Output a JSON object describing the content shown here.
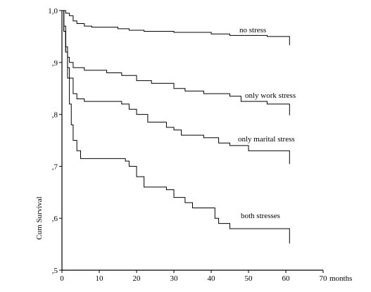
{
  "chart_data": {
    "type": "line",
    "xlabel": "months",
    "ylabel": "Cum Survival",
    "xlim": [
      0,
      70
    ],
    "ylim": [
      0.5,
      1.0
    ],
    "x_ticks": [
      0,
      10,
      20,
      30,
      40,
      50,
      60,
      70
    ],
    "x_tick_labels": [
      "0",
      "10",
      "20",
      "30",
      "40",
      "50",
      "60",
      "70"
    ],
    "y_ticks": [
      0.5,
      0.6,
      0.7,
      0.8,
      0.9,
      1.0
    ],
    "y_tick_labels": [
      ",5",
      ",6",
      ",7",
      ",8",
      ",9",
      "1,0"
    ],
    "series": [
      {
        "name": "no stress",
        "points": [
          [
            0,
            1.0
          ],
          [
            1,
            0.995
          ],
          [
            2,
            0.99
          ],
          [
            3,
            0.98
          ],
          [
            4,
            0.975
          ],
          [
            6,
            0.97
          ],
          [
            8,
            0.968
          ],
          [
            15,
            0.965
          ],
          [
            18,
            0.962
          ],
          [
            22,
            0.96
          ],
          [
            30,
            0.958
          ],
          [
            40,
            0.955
          ],
          [
            45,
            0.952
          ],
          [
            55,
            0.95
          ],
          [
            61,
            0.947
          ]
        ]
      },
      {
        "name": "only work stress",
        "points": [
          [
            0,
            1.0
          ],
          [
            0.5,
            0.97
          ],
          [
            1,
            0.93
          ],
          [
            1.5,
            0.91
          ],
          [
            2,
            0.9
          ],
          [
            3,
            0.89
          ],
          [
            6,
            0.885
          ],
          [
            12,
            0.88
          ],
          [
            16,
            0.875
          ],
          [
            20,
            0.865
          ],
          [
            24,
            0.86
          ],
          [
            30,
            0.85
          ],
          [
            33,
            0.845
          ],
          [
            38,
            0.84
          ],
          [
            45,
            0.835
          ],
          [
            48,
            0.825
          ],
          [
            55,
            0.82
          ],
          [
            61,
            0.812
          ]
        ]
      },
      {
        "name": "only marital stress",
        "points": [
          [
            0,
            1.0
          ],
          [
            0.5,
            0.96
          ],
          [
            1,
            0.92
          ],
          [
            1.5,
            0.89
          ],
          [
            2,
            0.87
          ],
          [
            3,
            0.84
          ],
          [
            4,
            0.83
          ],
          [
            6,
            0.825
          ],
          [
            16,
            0.82
          ],
          [
            18,
            0.81
          ],
          [
            20,
            0.8
          ],
          [
            23,
            0.785
          ],
          [
            28,
            0.775
          ],
          [
            30,
            0.77
          ],
          [
            32,
            0.76
          ],
          [
            38,
            0.755
          ],
          [
            42,
            0.745
          ],
          [
            45,
            0.74
          ],
          [
            50,
            0.73
          ],
          [
            61,
            0.718
          ]
        ]
      },
      {
        "name": "both stresses",
        "points": [
          [
            0,
            1.0
          ],
          [
            0.5,
            0.96
          ],
          [
            1,
            0.92
          ],
          [
            1.5,
            0.87
          ],
          [
            2,
            0.82
          ],
          [
            2.5,
            0.78
          ],
          [
            3,
            0.75
          ],
          [
            4,
            0.73
          ],
          [
            5,
            0.715
          ],
          [
            12,
            0.715
          ],
          [
            17,
            0.71
          ],
          [
            18,
            0.7
          ],
          [
            20,
            0.68
          ],
          [
            22,
            0.66
          ],
          [
            28,
            0.655
          ],
          [
            30,
            0.64
          ],
          [
            33,
            0.63
          ],
          [
            35,
            0.62
          ],
          [
            41,
            0.6
          ],
          [
            42,
            0.59
          ],
          [
            45,
            0.58
          ],
          [
            61,
            0.565
          ]
        ]
      }
    ]
  }
}
